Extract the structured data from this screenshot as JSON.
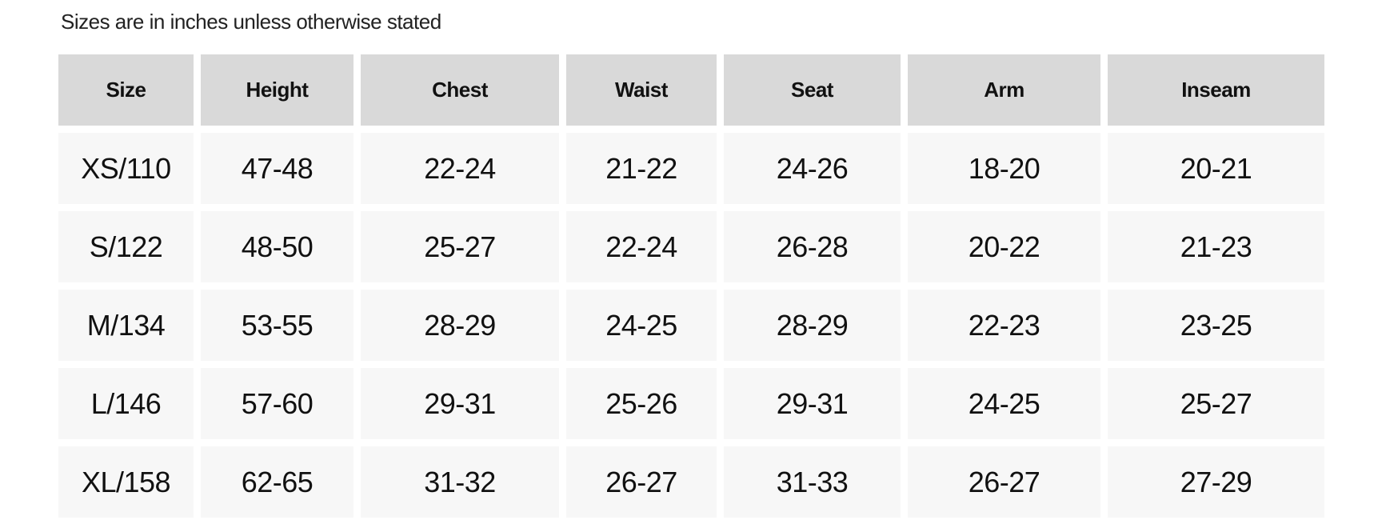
{
  "note": "Sizes are in inches unless otherwise stated",
  "columns": [
    "Size",
    "Height",
    "Chest",
    "Waist",
    "Seat",
    "Arm",
    "Inseam"
  ],
  "rows": [
    [
      "XS/110",
      "47-48",
      "22-24",
      "21-22",
      "24-26",
      "18-20",
      "20-21"
    ],
    [
      "S/122",
      "48-50",
      "25-27",
      "22-24",
      "26-28",
      "20-22",
      "21-23"
    ],
    [
      "M/134",
      "53-55",
      "28-29",
      "24-25",
      "28-29",
      "22-23",
      "23-25"
    ],
    [
      "L/146",
      "57-60",
      "29-31",
      "25-26",
      "29-31",
      "24-25",
      "25-27"
    ],
    [
      "XL/158",
      "62-65",
      "31-32",
      "26-27",
      "31-33",
      "26-27",
      "27-29"
    ]
  ]
}
